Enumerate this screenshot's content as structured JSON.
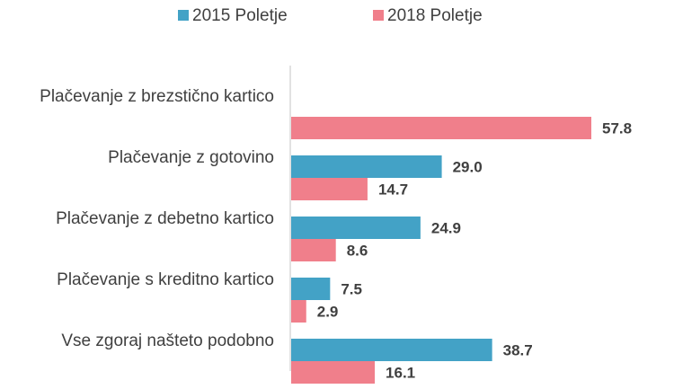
{
  "chart_data": {
    "type": "bar",
    "orientation": "horizontal",
    "categories": [
      "Plačevanje z brezstično kartico",
      "Plačevanje z gotovino",
      "Plačevanje z debetno kartico",
      "Plačevanje s kreditno kartico",
      "Vse zgoraj našteto podobno"
    ],
    "series": [
      {
        "name": "2015 Poletje",
        "color": "#43A2C6",
        "values": [
          null,
          29.0,
          24.9,
          7.5,
          38.7
        ]
      },
      {
        "name": "2018 Poletje",
        "color": "#F07F8B",
        "values": [
          57.8,
          14.7,
          8.6,
          2.9,
          16.1
        ]
      }
    ],
    "value_format": "0.0",
    "xlim": [
      0,
      57.8
    ],
    "legend_position": "top",
    "grid": false
  }
}
